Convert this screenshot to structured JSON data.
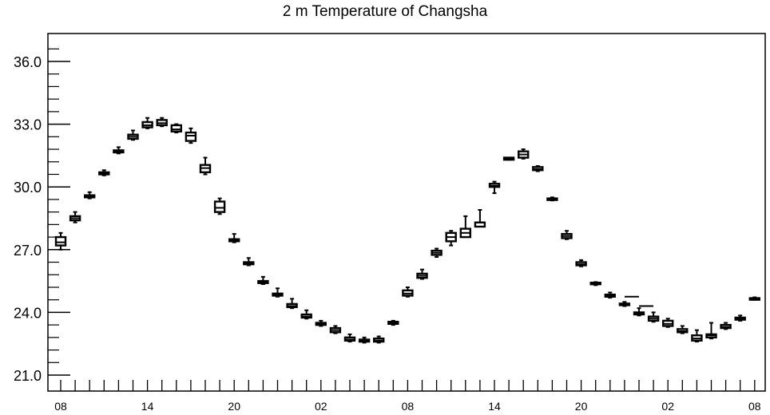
{
  "chart_data": {
    "type": "box",
    "title": "2 m Temperature of Changsha",
    "xlabel": "",
    "ylabel": "",
    "ylim": [
      21.0,
      37.2
    ],
    "yticks": [
      "21.0",
      "24.0",
      "27.0",
      "30.0",
      "33.0",
      "36.0"
    ],
    "xtick_labels": [
      "08",
      "14",
      "20",
      "02",
      "08",
      "14",
      "20",
      "02",
      "08"
    ],
    "grid": false,
    "boxes": [
      {
        "x": "08",
        "min": 27.0,
        "q1": 27.2,
        "median": 27.35,
        "q3": 27.6,
        "max": 27.8
      },
      {
        "x": "",
        "min": 28.3,
        "q1": 28.4,
        "median": 28.5,
        "q3": 28.6,
        "max": 28.8
      },
      {
        "x": "",
        "min": 29.45,
        "q1": 29.5,
        "median": 29.55,
        "q3": 29.6,
        "max": 29.75
      },
      {
        "x": "",
        "min": 30.55,
        "q1": 30.6,
        "median": 30.65,
        "q3": 30.7,
        "max": 30.8
      },
      {
        "x": "",
        "min": 31.6,
        "q1": 31.65,
        "median": 31.7,
        "q3": 31.75,
        "max": 31.9
      },
      {
        "x": "",
        "min": 32.25,
        "q1": 32.3,
        "median": 32.4,
        "q3": 32.5,
        "max": 32.7
      },
      {
        "x": "14",
        "min": 32.8,
        "q1": 32.85,
        "median": 32.95,
        "q3": 33.1,
        "max": 33.3
      },
      {
        "x": "",
        "min": 32.9,
        "q1": 32.95,
        "median": 33.05,
        "q3": 33.2,
        "max": 33.3
      },
      {
        "x": "",
        "min": 32.6,
        "q1": 32.65,
        "median": 32.75,
        "q3": 32.95,
        "max": 33.0
      },
      {
        "x": "",
        "min": 32.1,
        "q1": 32.2,
        "median": 32.45,
        "q3": 32.6,
        "max": 32.8
      },
      {
        "x": "",
        "min": 30.6,
        "q1": 30.7,
        "median": 30.9,
        "q3": 31.05,
        "max": 31.4
      },
      {
        "x": "",
        "min": 28.7,
        "q1": 28.8,
        "median": 29.0,
        "q3": 29.3,
        "max": 29.45
      },
      {
        "x": "20",
        "min": 27.35,
        "q1": 27.4,
        "median": 27.45,
        "q3": 27.5,
        "max": 27.75
      },
      {
        "x": "",
        "min": 26.25,
        "q1": 26.3,
        "median": 26.35,
        "q3": 26.4,
        "max": 26.6
      },
      {
        "x": "",
        "min": 25.35,
        "q1": 25.4,
        "median": 25.45,
        "q3": 25.5,
        "max": 25.7
      },
      {
        "x": "",
        "min": 24.75,
        "q1": 24.8,
        "median": 24.85,
        "q3": 24.9,
        "max": 25.15
      },
      {
        "x": "",
        "min": 24.2,
        "q1": 24.25,
        "median": 24.3,
        "q3": 24.4,
        "max": 24.65
      },
      {
        "x": "",
        "min": 23.7,
        "q1": 23.75,
        "median": 23.8,
        "q3": 23.9,
        "max": 24.1
      },
      {
        "x": "02",
        "min": 23.35,
        "q1": 23.4,
        "median": 23.45,
        "q3": 23.5,
        "max": 23.6
      },
      {
        "x": "",
        "min": 23.0,
        "q1": 23.05,
        "median": 23.15,
        "q3": 23.25,
        "max": 23.35
      },
      {
        "x": "",
        "min": 22.6,
        "q1": 22.65,
        "median": 22.7,
        "q3": 22.8,
        "max": 22.95
      },
      {
        "x": "",
        "min": 22.55,
        "q1": 22.6,
        "median": 22.65,
        "q3": 22.7,
        "max": 22.8
      },
      {
        "x": "",
        "min": 22.55,
        "q1": 22.6,
        "median": 22.65,
        "q3": 22.75,
        "max": 22.85
      },
      {
        "x": "",
        "min": 23.4,
        "q1": 23.45,
        "median": 23.5,
        "q3": 23.55,
        "max": 23.6
      },
      {
        "x": "08",
        "min": 24.75,
        "q1": 24.8,
        "median": 24.9,
        "q3": 25.05,
        "max": 25.2
      },
      {
        "x": "",
        "min": 25.6,
        "q1": 25.65,
        "median": 25.75,
        "q3": 25.85,
        "max": 26.05
      },
      {
        "x": "",
        "min": 26.65,
        "q1": 26.75,
        "median": 26.85,
        "q3": 26.95,
        "max": 27.05
      },
      {
        "x": "",
        "min": 27.2,
        "q1": 27.4,
        "median": 27.6,
        "q3": 27.8,
        "max": 27.9
      },
      {
        "x": "",
        "min": 27.6,
        "q1": 27.6,
        "median": 27.8,
        "q3": 28.0,
        "max": 28.6
      },
      {
        "x": "",
        "min": 28.1,
        "q1": 28.1,
        "median": 28.3,
        "q3": 28.3,
        "max": 28.9
      },
      {
        "x": "14",
        "min": 29.7,
        "q1": 30.0,
        "median": 30.05,
        "q3": 30.15,
        "max": 30.25
      },
      {
        "x": "",
        "min": 31.3,
        "q1": 31.3,
        "median": 31.35,
        "q3": 31.4,
        "max": 31.4
      },
      {
        "x": "",
        "min": 31.35,
        "q1": 31.4,
        "median": 31.55,
        "q3": 31.7,
        "max": 31.8
      },
      {
        "x": "",
        "min": 30.75,
        "q1": 30.8,
        "median": 30.85,
        "q3": 30.95,
        "max": 31.0
      },
      {
        "x": "",
        "min": 29.35,
        "q1": 29.38,
        "median": 29.42,
        "q3": 29.45,
        "max": 29.5
      },
      {
        "x": "",
        "min": 27.5,
        "q1": 27.55,
        "median": 27.65,
        "q3": 27.75,
        "max": 27.9
      },
      {
        "x": "20",
        "min": 26.2,
        "q1": 26.25,
        "median": 26.3,
        "q3": 26.4,
        "max": 26.5
      },
      {
        "x": "",
        "min": 25.3,
        "q1": 25.35,
        "median": 25.38,
        "q3": 25.42,
        "max": 25.45
      },
      {
        "x": "",
        "min": 24.7,
        "q1": 24.75,
        "median": 24.8,
        "q3": 24.85,
        "max": 24.95
      },
      {
        "x": "",
        "min": 24.3,
        "q1": 24.35,
        "median": 24.38,
        "q3": 24.42,
        "max": 24.5
      },
      {
        "x": "",
        "min": 23.85,
        "q1": 23.9,
        "median": 23.95,
        "q3": 24.0,
        "max": 24.2
      },
      {
        "x": "",
        "min": 23.55,
        "q1": 23.6,
        "median": 23.7,
        "q3": 23.8,
        "max": 24.0
      },
      {
        "x": "02",
        "min": 23.3,
        "q1": 23.35,
        "median": 23.45,
        "q3": 23.6,
        "max": 23.7
      },
      {
        "x": "",
        "min": 23.0,
        "q1": 23.05,
        "median": 23.1,
        "q3": 23.2,
        "max": 23.35
      },
      {
        "x": "",
        "min": 22.6,
        "q1": 22.65,
        "median": 22.75,
        "q3": 22.9,
        "max": 23.15
      },
      {
        "x": "",
        "min": 22.75,
        "q1": 22.8,
        "median": 22.9,
        "q3": 22.95,
        "max": 23.5
      },
      {
        "x": "",
        "min": 23.2,
        "q1": 23.25,
        "median": 23.3,
        "q3": 23.4,
        "max": 23.5
      },
      {
        "x": "",
        "min": 23.6,
        "q1": 23.65,
        "median": 23.7,
        "q3": 23.75,
        "max": 23.85
      },
      {
        "x": "08",
        "min": 24.6,
        "q1": 24.62,
        "median": 24.65,
        "q3": 24.68,
        "max": 24.72
      }
    ],
    "median_lines": [
      {
        "x_index": 39.5,
        "value": 24.75
      },
      {
        "x_index": 40.5,
        "value": 24.3
      }
    ]
  }
}
